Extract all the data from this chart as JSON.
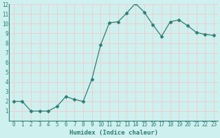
{
  "x": [
    0,
    1,
    2,
    3,
    4,
    5,
    6,
    7,
    8,
    9,
    10,
    11,
    12,
    13,
    14,
    15,
    16,
    17,
    18,
    19,
    20,
    21,
    22,
    23
  ],
  "y": [
    2.0,
    2.0,
    1.0,
    1.0,
    1.0,
    1.5,
    2.5,
    2.2,
    2.0,
    4.3,
    7.8,
    10.1,
    10.2,
    11.1,
    12.1,
    11.2,
    9.9,
    8.7,
    10.2,
    10.4,
    9.8,
    9.1,
    8.9,
    8.8
  ],
  "line_color": "#2d7d74",
  "marker": "D",
  "marker_size": 2.5,
  "bg_color": "#cef0ee",
  "grid_color": "#f5c8c8",
  "xlabel": "Humidex (Indice chaleur)",
  "xlabel_fontsize": 6.5,
  "tick_fontsize": 5.5,
  "ylim": [
    0,
    12
  ],
  "xlim": [
    -0.5,
    23.5
  ],
  "yticks": [
    1,
    2,
    3,
    4,
    5,
    6,
    7,
    8,
    9,
    10,
    11,
    12
  ],
  "xticks": [
    0,
    1,
    2,
    3,
    4,
    5,
    6,
    7,
    8,
    9,
    10,
    11,
    12,
    13,
    14,
    15,
    16,
    17,
    18,
    19,
    20,
    21,
    22,
    23
  ]
}
